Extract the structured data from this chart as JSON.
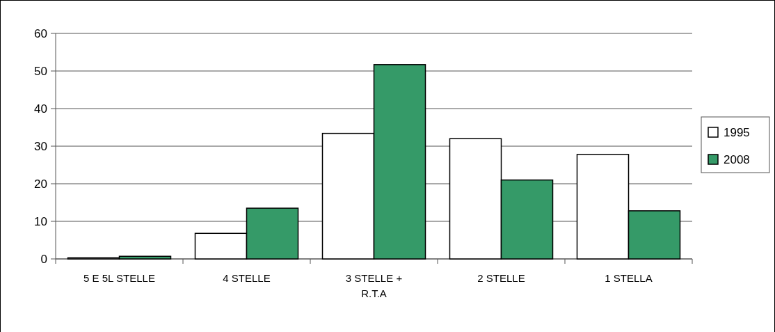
{
  "chart_data": {
    "type": "bar",
    "categories": [
      "5 E 5L STELLE",
      "4 STELLE",
      "3 STELLE +\nR.T.A",
      "2 STELLE",
      "1 STELLA"
    ],
    "series": [
      {
        "name": "1995",
        "color": "#ffffff",
        "values": [
          0.3,
          6.8,
          33.4,
          32.0,
          27.8
        ]
      },
      {
        "name": "2008",
        "color": "#359a68",
        "values": [
          0.7,
          13.5,
          51.7,
          21.0,
          12.8
        ]
      }
    ],
    "ylim": [
      0,
      60
    ],
    "yticks": [
      0,
      10,
      20,
      30,
      40,
      50,
      60
    ],
    "grid": "y",
    "legend": "right"
  }
}
